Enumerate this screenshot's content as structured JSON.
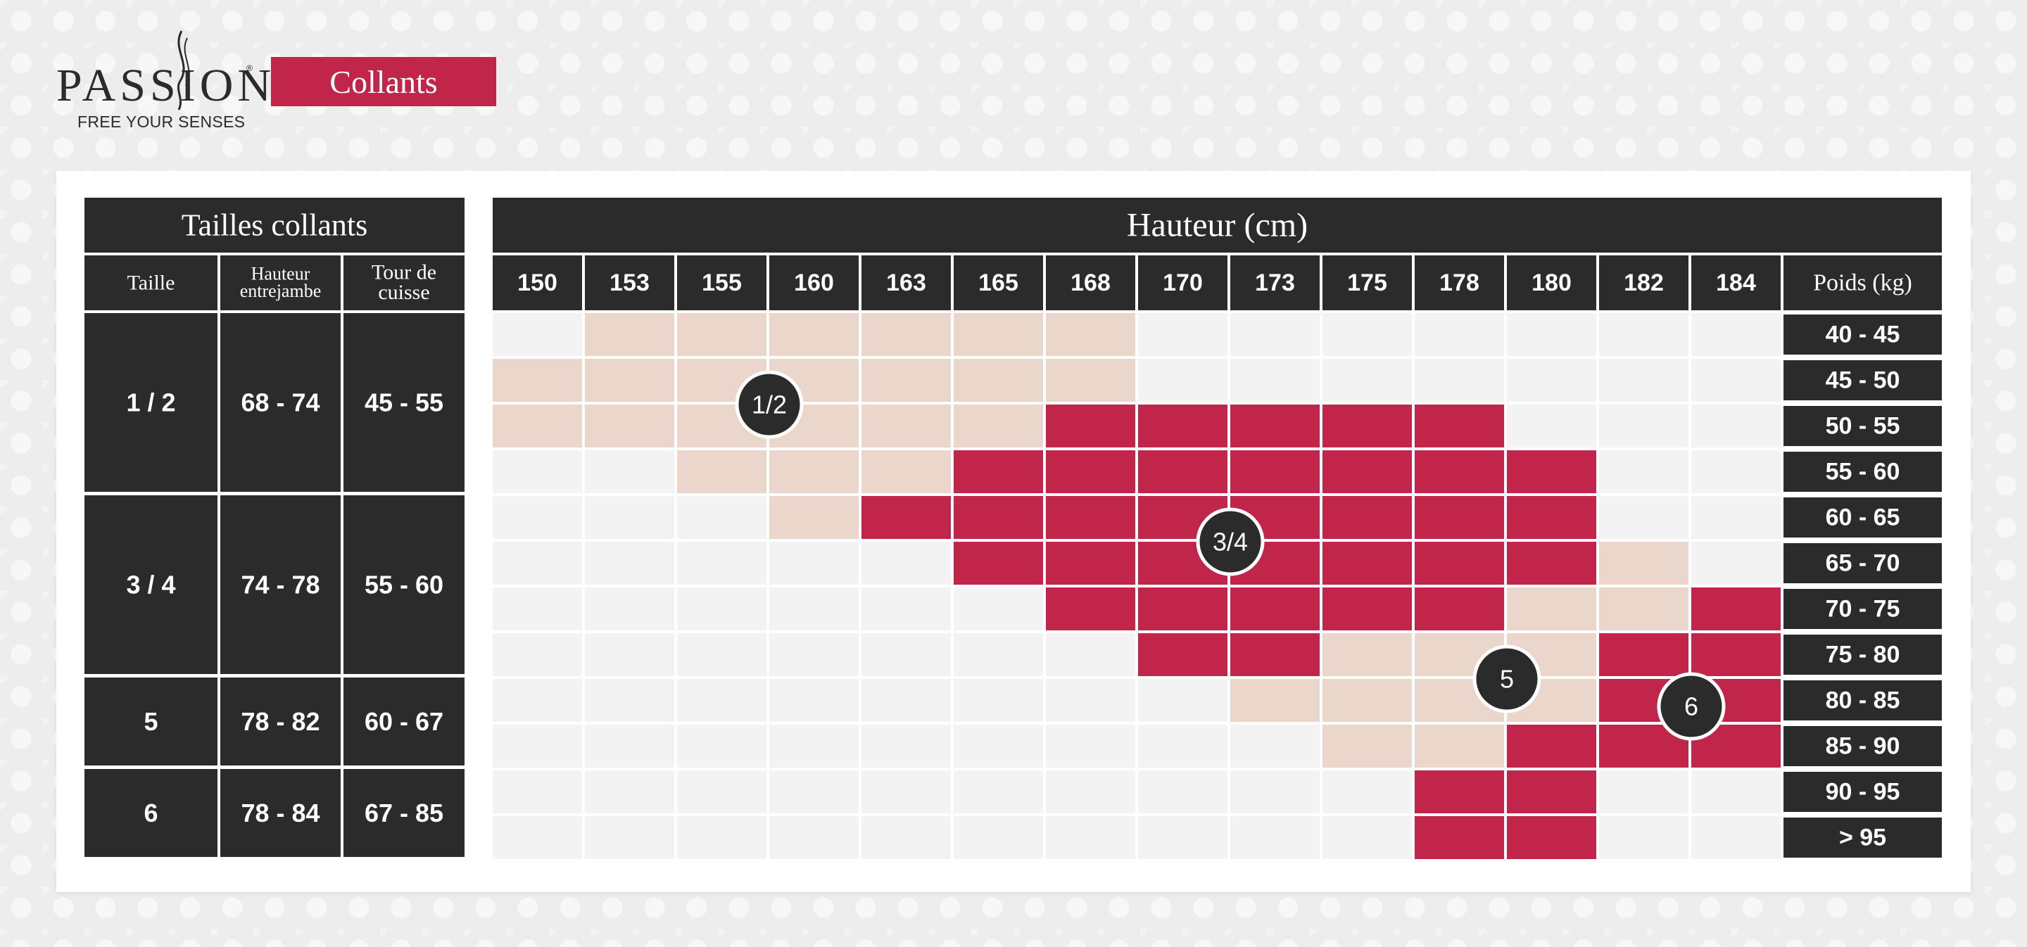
{
  "brand": {
    "name": "PASSION",
    "tagline": "FREE YOUR SENSES"
  },
  "badge": "Collants",
  "colors": {
    "dark": "#2b2b2b",
    "accent": "#c1264a",
    "light": "#ead6cb",
    "empty": "#f3f3f3"
  },
  "chart_data": {
    "type": "heatmap",
    "title": "Hauteur (cm)",
    "size_table": {
      "title": "Tailles collants",
      "headers": [
        "Taille",
        "Hauteur entrejambe",
        "Tour de cuisse"
      ],
      "rows": [
        {
          "taille": "1 / 2",
          "hauteur": "68 - 74",
          "tour": "45 - 55"
        },
        {
          "taille": "3 / 4",
          "hauteur": "74 - 78",
          "tour": "55 - 60"
        },
        {
          "taille": "5",
          "hauteur": "78 - 82",
          "tour": "60 - 67"
        },
        {
          "taille": "6",
          "hauteur": "78 - 84",
          "tour": "67 - 85"
        }
      ]
    },
    "x_label": "Hauteur (cm)",
    "x": [
      "150",
      "153",
      "155",
      "160",
      "163",
      "165",
      "168",
      "170",
      "173",
      "175",
      "178",
      "180",
      "182",
      "184"
    ],
    "y_label": "Poids (kg)",
    "y": [
      "40 - 45",
      "45 - 50",
      "50 - 55",
      "55 - 60",
      "60 - 65",
      "65 - 70",
      "70 - 75",
      "75 - 80",
      "80 - 85",
      "85 - 90",
      "90 - 95",
      "> 95"
    ],
    "cells": [
      [
        0,
        1,
        1,
        1,
        1,
        1,
        1,
        0,
        0,
        0,
        0,
        0,
        0,
        0
      ],
      [
        1,
        1,
        1,
        1,
        1,
        1,
        1,
        0,
        0,
        0,
        0,
        0,
        0,
        0
      ],
      [
        1,
        1,
        1,
        1,
        1,
        1,
        2,
        2,
        2,
        2,
        2,
        0,
        0,
        0
      ],
      [
        0,
        0,
        1,
        1,
        1,
        2,
        2,
        2,
        2,
        2,
        2,
        2,
        0,
        0
      ],
      [
        0,
        0,
        0,
        1,
        2,
        2,
        2,
        2,
        2,
        2,
        2,
        2,
        0,
        0
      ],
      [
        0,
        0,
        0,
        0,
        0,
        2,
        2,
        2,
        2,
        2,
        2,
        2,
        1,
        0
      ],
      [
        0,
        0,
        0,
        0,
        0,
        0,
        2,
        2,
        2,
        2,
        2,
        1,
        1,
        2
      ],
      [
        0,
        0,
        0,
        0,
        0,
        0,
        0,
        2,
        2,
        1,
        1,
        1,
        2,
        2
      ],
      [
        0,
        0,
        0,
        0,
        0,
        0,
        0,
        0,
        1,
        1,
        1,
        1,
        2,
        2
      ],
      [
        0,
        0,
        0,
        0,
        0,
        0,
        0,
        0,
        0,
        1,
        1,
        2,
        2,
        2
      ],
      [
        0,
        0,
        0,
        0,
        0,
        0,
        0,
        0,
        0,
        0,
        2,
        2,
        0,
        0
      ],
      [
        0,
        0,
        0,
        0,
        0,
        0,
        0,
        0,
        0,
        0,
        2,
        2,
        0,
        0
      ]
    ],
    "zones": [
      {
        "label": "1/2",
        "x": 3,
        "y": 2
      },
      {
        "label": "3/4",
        "x": 8,
        "y": 5
      },
      {
        "label": "5",
        "x": 11,
        "y": 8
      },
      {
        "label": "6",
        "x": 13,
        "y": 8.6
      }
    ]
  }
}
